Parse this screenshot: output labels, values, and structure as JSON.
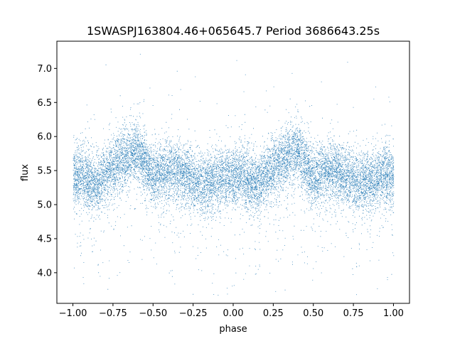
{
  "chart_data": {
    "type": "scatter",
    "title": "1SWASPJ163804.46+065645.7 Period 3686643.25s",
    "xlabel": "phase",
    "ylabel": "flux",
    "xlim": [
      -1.1,
      1.1
    ],
    "ylim": [
      3.55,
      7.4
    ],
    "xticks": [
      -1.0,
      -0.75,
      -0.5,
      -0.25,
      0.0,
      0.25,
      0.5,
      0.75,
      1.0
    ],
    "xtick_labels": [
      "−1.00",
      "−0.75",
      "−0.50",
      "−0.25",
      "0.00",
      "0.25",
      "0.50",
      "0.75",
      "1.00"
    ],
    "yticks": [
      4.0,
      4.5,
      5.0,
      5.5,
      6.0,
      6.5,
      7.0
    ],
    "ytick_labels": [
      "4.0",
      "4.5",
      "5.0",
      "5.5",
      "6.0",
      "6.5",
      "7.0"
    ],
    "grid": false,
    "marker_color": "#1f77b4",
    "profile": {
      "phase": [
        0.0,
        0.05,
        0.1,
        0.15,
        0.2,
        0.25,
        0.3,
        0.35,
        0.4,
        0.45,
        0.5,
        0.55,
        0.6,
        0.65,
        0.7,
        0.75,
        0.8,
        0.85,
        0.9,
        0.95,
        1.0
      ],
      "flux": [
        5.4,
        5.45,
        5.35,
        5.3,
        5.45,
        5.55,
        5.65,
        5.72,
        5.8,
        5.6,
        5.4,
        5.45,
        5.5,
        5.5,
        5.45,
        5.35,
        5.3,
        5.35,
        5.4,
        5.45,
        5.4
      ]
    },
    "approx_points": 14000
  }
}
